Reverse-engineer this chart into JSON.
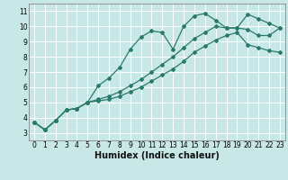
{
  "xlabel": "Humidex (Indice chaleur)",
  "bg_color": "#c8e8e8",
  "grid_color": "#ffffff",
  "line_color": "#2a7a6a",
  "xlim": [
    -0.5,
    23.5
  ],
  "ylim": [
    2.5,
    11.5
  ],
  "xticks": [
    0,
    1,
    2,
    3,
    4,
    5,
    6,
    7,
    8,
    9,
    10,
    11,
    12,
    13,
    14,
    15,
    16,
    17,
    18,
    19,
    20,
    21,
    22,
    23
  ],
  "yticks": [
    3,
    4,
    5,
    6,
    7,
    8,
    9,
    10,
    11
  ],
  "line1_x": [
    0,
    1,
    2,
    3,
    4,
    5,
    6,
    7,
    8,
    9,
    10,
    11,
    12,
    13,
    14,
    15,
    16,
    17,
    18,
    19,
    20,
    21,
    22,
    23
  ],
  "line1_y": [
    3.7,
    3.2,
    3.8,
    4.5,
    4.6,
    5.0,
    6.1,
    6.6,
    7.3,
    8.5,
    9.3,
    9.7,
    9.6,
    8.5,
    10.0,
    10.7,
    10.85,
    10.4,
    9.9,
    9.9,
    10.8,
    10.5,
    10.2,
    9.9
  ],
  "line2_x": [
    0,
    1,
    2,
    3,
    4,
    5,
    6,
    7,
    8,
    9,
    10,
    11,
    12,
    13,
    14,
    15,
    16,
    17,
    18,
    19,
    20,
    21,
    22,
    23
  ],
  "line2_y": [
    3.7,
    3.2,
    3.8,
    4.5,
    4.6,
    5.0,
    5.2,
    5.4,
    5.7,
    6.1,
    6.5,
    7.0,
    7.5,
    8.0,
    8.6,
    9.2,
    9.6,
    10.0,
    9.9,
    9.9,
    9.8,
    9.4,
    9.4,
    9.9
  ],
  "line3_x": [
    0,
    1,
    2,
    3,
    4,
    5,
    6,
    7,
    8,
    9,
    10,
    11,
    12,
    13,
    14,
    15,
    16,
    17,
    18,
    19,
    20,
    21,
    22,
    23
  ],
  "line3_y": [
    3.7,
    3.2,
    3.8,
    4.5,
    4.6,
    5.0,
    5.1,
    5.2,
    5.4,
    5.7,
    6.0,
    6.4,
    6.8,
    7.2,
    7.7,
    8.3,
    8.7,
    9.1,
    9.4,
    9.6,
    8.8,
    8.6,
    8.4,
    8.3
  ],
  "marker": "D",
  "markersize": 2.0,
  "linewidth": 0.9,
  "tick_fontsize": 5.5,
  "xlabel_fontsize": 7
}
